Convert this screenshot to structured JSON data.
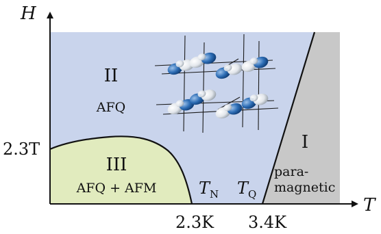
{
  "axes": {
    "y_label": "H",
    "x_label": "T",
    "y_tick": "2.3T",
    "x_ticks": [
      "2.3K",
      "3.4K"
    ]
  },
  "phases": {
    "II": {
      "numeral": "II",
      "name": "AFQ"
    },
    "III": {
      "numeral": "III",
      "name": "AFQ + AFM"
    },
    "I": {
      "numeral": "I",
      "name_line1": "para-",
      "name_line2": "magnetic"
    }
  },
  "transitions": {
    "tn": {
      "main": "T",
      "sub": "N"
    },
    "tq": {
      "main": "T",
      "sub": "Q"
    }
  },
  "colors": {
    "phase_II": "#c9d4ec",
    "phase_III": "#e1ebbe",
    "phase_I": "#c8c8c8",
    "orbital_dark": "#1f5fa6",
    "orbital_light": "#d8dde4"
  }
}
